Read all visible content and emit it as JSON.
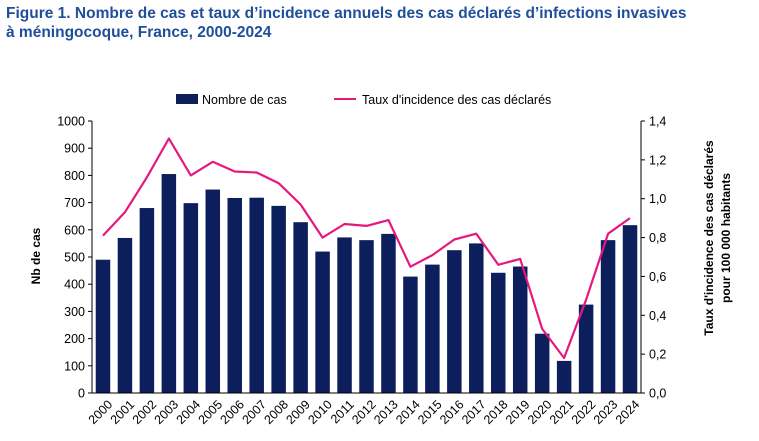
{
  "figure": {
    "title_line1": "Figure 1. Nombre de cas et taux d’incidence annuels des cas déclarés d’infections invasives",
    "title_line2": "à méningocoque, France, 2000-2024"
  },
  "chart_data": {
    "type": "bar",
    "categories": [
      "2000",
      "2001",
      "2002",
      "2003",
      "2004",
      "2005",
      "2006",
      "2007",
      "2008",
      "2009",
      "2010",
      "2011",
      "2012",
      "2013",
      "2014",
      "2015",
      "2016",
      "2017",
      "2018",
      "2019",
      "2020",
      "2021",
      "2022",
      "2023",
      "2024"
    ],
    "series": [
      {
        "name": "Nombre de cas",
        "type": "bar",
        "axis": "left",
        "color": "#0c1f5c",
        "values": [
          490,
          570,
          680,
          805,
          698,
          748,
          717,
          718,
          688,
          628,
          520,
          572,
          562,
          585,
          428,
          472,
          525,
          550,
          442,
          465,
          218,
          118,
          325,
          562,
          617
        ]
      },
      {
        "name": "Taux d'incidence des cas déclarés",
        "type": "line",
        "axis": "right",
        "color": "#e6177d",
        "values": [
          0.81,
          0.93,
          1.11,
          1.31,
          1.12,
          1.19,
          1.14,
          1.135,
          1.08,
          0.97,
          0.8,
          0.87,
          0.86,
          0.89,
          0.65,
          0.71,
          0.79,
          0.82,
          0.66,
          0.69,
          0.33,
          0.18,
          0.48,
          0.82,
          0.9
        ]
      }
    ],
    "ylabel": "Nb de cas",
    "ylabel_right_line1": "Taux d'incidence des cas déclarés",
    "ylabel_right_line2": "pour 100 000 habitants",
    "ylim": [
      0,
      1000
    ],
    "ylim_right": [
      0,
      1.4
    ],
    "yticks": [
      "0",
      "100",
      "200",
      "300",
      "400",
      "500",
      "600",
      "700",
      "800",
      "900",
      "1000"
    ],
    "yticks_right": [
      "0,0",
      "0,2",
      "0,4",
      "0,6",
      "0,8",
      "1,0",
      "1,2",
      "1,4"
    ],
    "grid": false,
    "legend_position": "top"
  }
}
